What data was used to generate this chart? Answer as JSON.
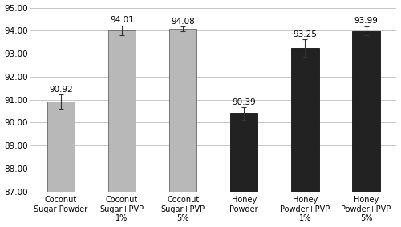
{
  "categories": [
    "Coconut\nSugar Powder",
    "Coconut\nSugar+PVP\n1%",
    "Coconut\nSugar+PVP\n5%",
    "Honey\nPowder",
    "Honey\nPowder+PVP\n1%",
    "Honey\nPowder+PVP\n5%"
  ],
  "values": [
    90.92,
    94.01,
    94.08,
    90.39,
    93.25,
    93.99
  ],
  "errors": [
    0.3,
    0.22,
    0.1,
    0.28,
    0.38,
    0.2
  ],
  "bar_colors": [
    "#b8b8b8",
    "#b8b8b8",
    "#b8b8b8",
    "#222222",
    "#222222",
    "#222222"
  ],
  "edge_colors": [
    "#666666",
    "#666666",
    "#666666",
    "#111111",
    "#111111",
    "#111111"
  ],
  "ylim": [
    87.0,
    95.0
  ],
  "yticks": [
    87.0,
    88.0,
    89.0,
    90.0,
    91.0,
    92.0,
    93.0,
    94.0,
    95.0
  ],
  "value_labels": [
    "90.92",
    "94.01",
    "94.08",
    "90.39",
    "93.25",
    "93.99"
  ],
  "background_color": "#ffffff",
  "grid_color": "#bbbbbb",
  "tick_fontsize": 7.5,
  "label_fontsize": 7.0,
  "value_fontsize": 7.5
}
